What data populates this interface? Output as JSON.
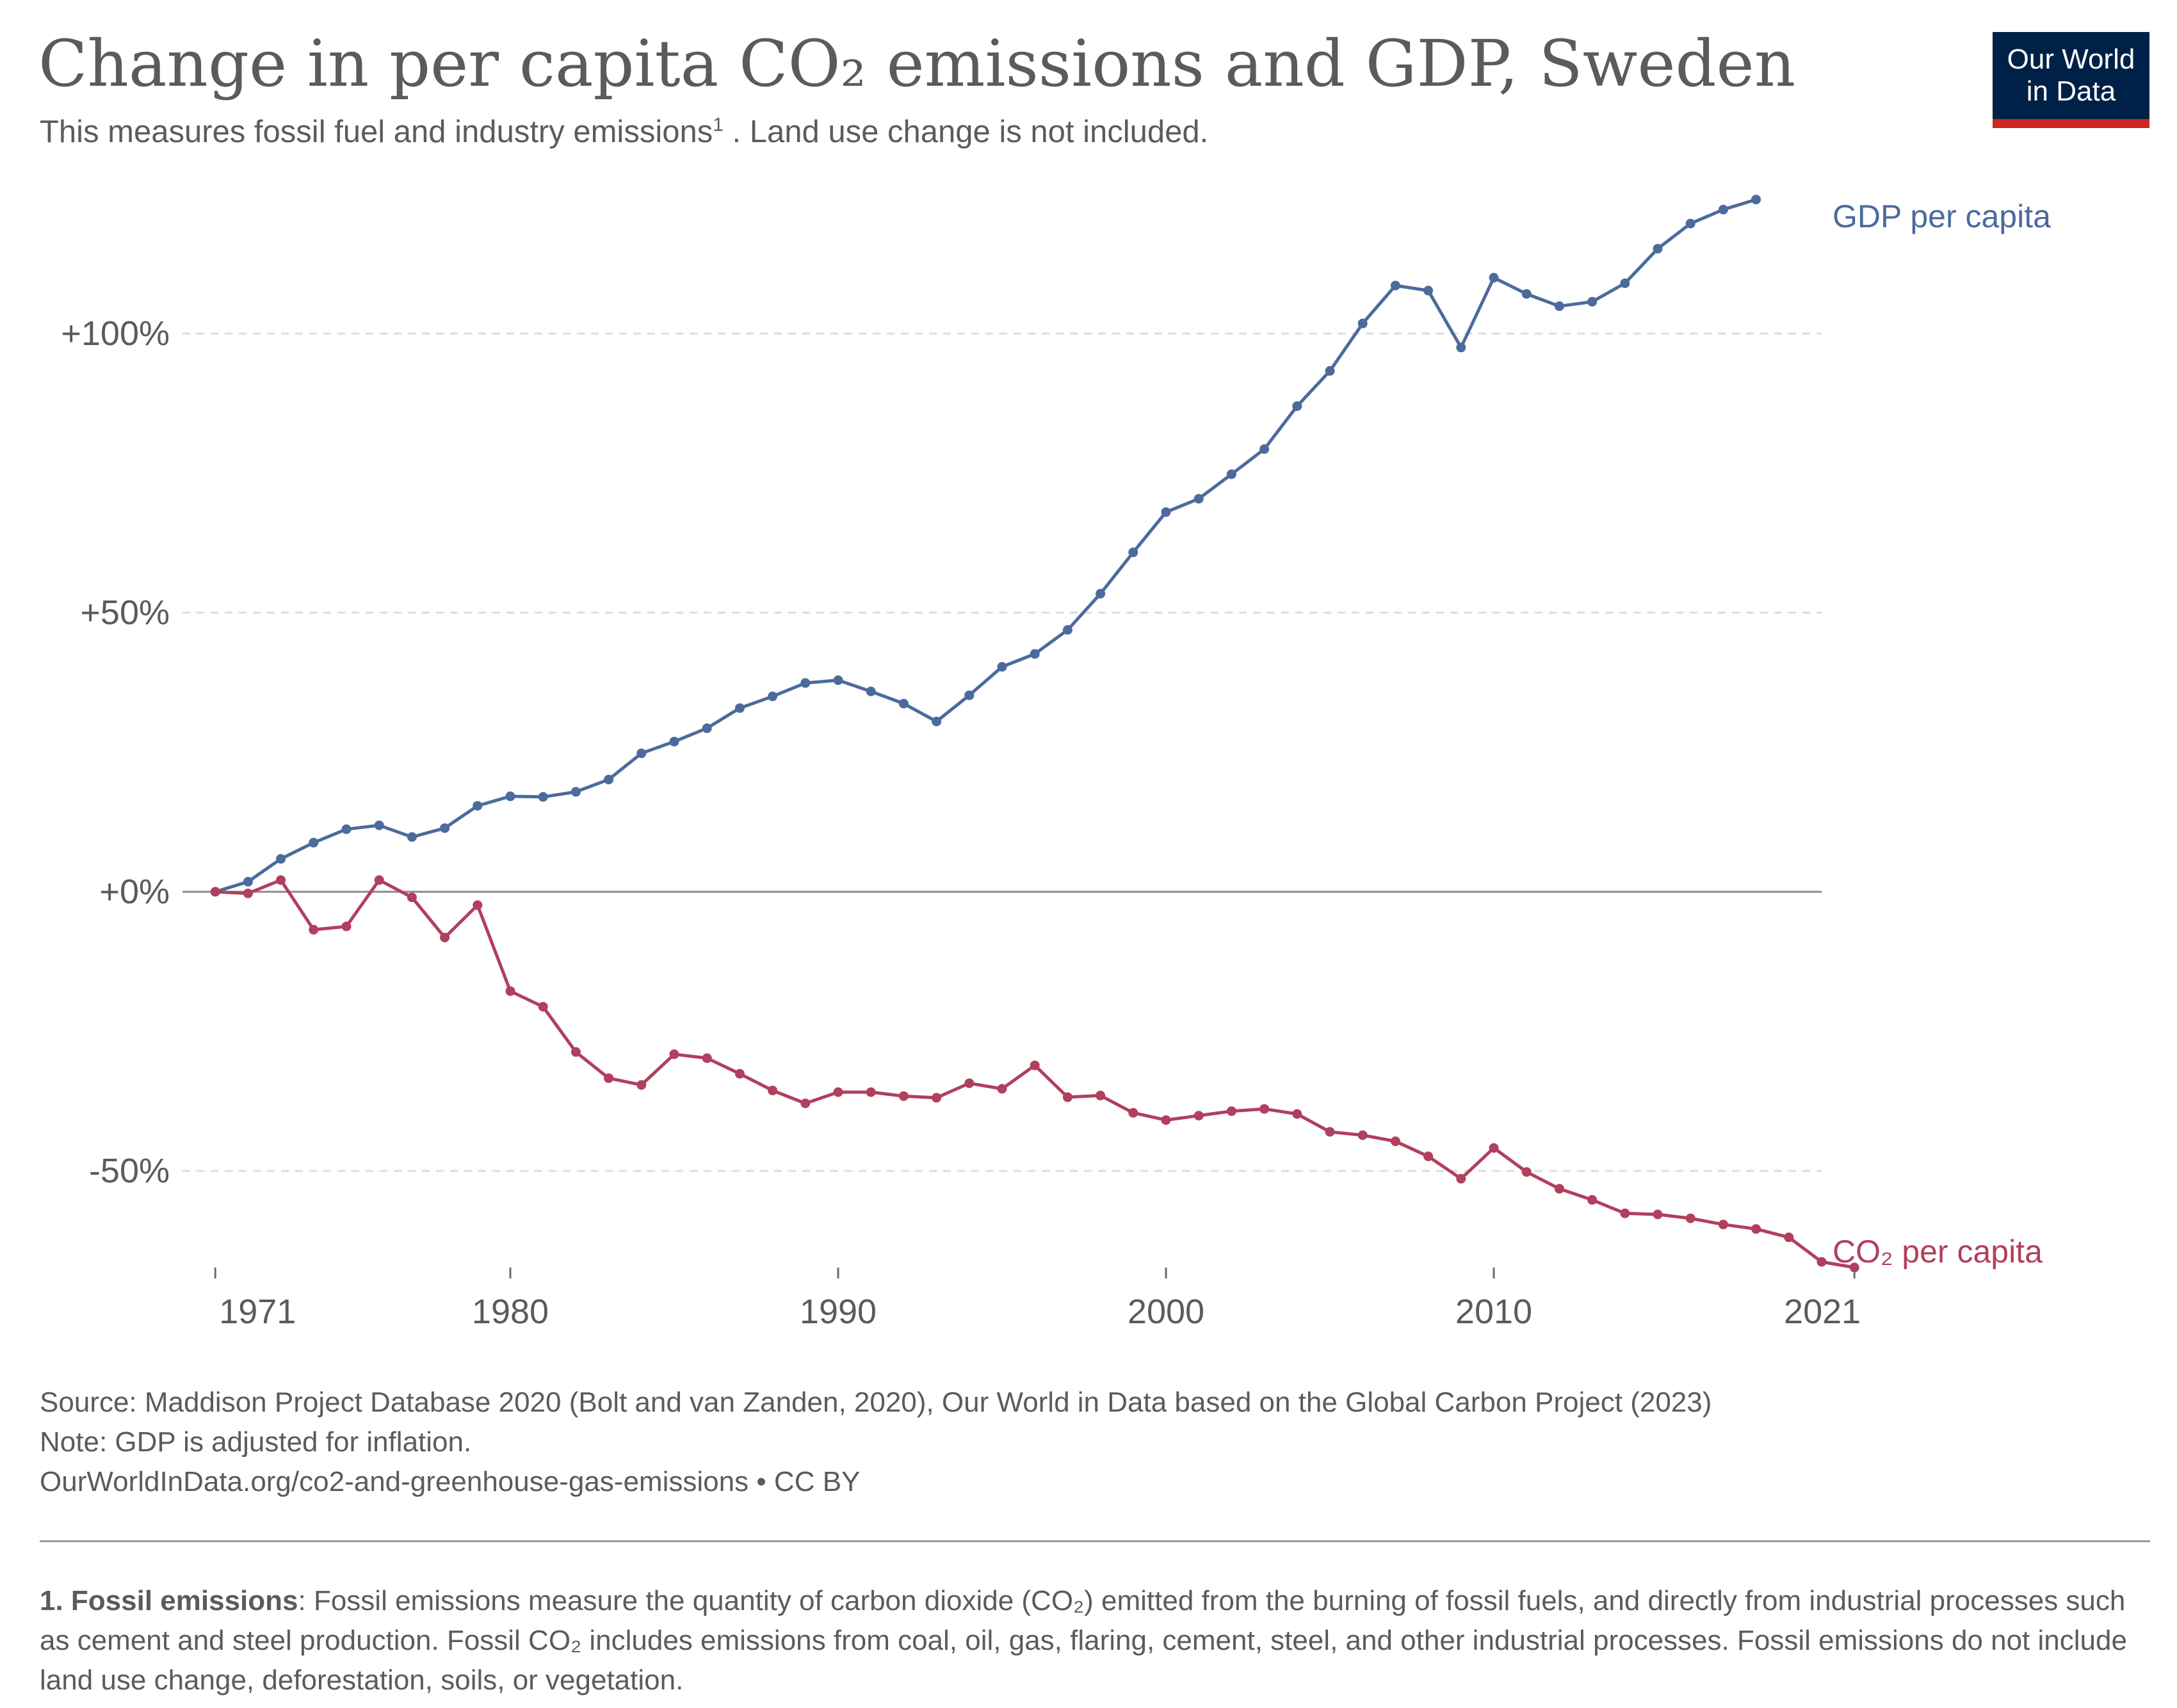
{
  "header": {
    "title": "Change in per capita CO₂ emissions and GDP, Sweden",
    "subtitle_before": "This measures fossil fuel and industry emissions",
    "subtitle_sup": "1",
    "subtitle_after": " . Land use change is not included.",
    "logo_line1": "Our World",
    "logo_line2": "in Data"
  },
  "colors": {
    "gdp": "#4c6a9c",
    "co2": "#b13f5e",
    "grid": "#dcdcdc",
    "zero_line": "#8a8a8a",
    "logo_bg": "#002147",
    "logo_bar": "#ce261e"
  },
  "chart_data": {
    "type": "line",
    "title": "Change in per capita CO₂ emissions and GDP, Sweden",
    "xlabel": "",
    "ylabel": "",
    "xlim": [
      1970,
      2020
    ],
    "ylim": [
      -67,
      125
    ],
    "y_ticks": [
      100,
      50,
      0,
      -50
    ],
    "y_tick_labels": [
      "+100%",
      "+50%",
      "+0%",
      "-50%"
    ],
    "x_ticks": [
      1971,
      1980,
      1990,
      2000,
      2010,
      2021
    ],
    "x_tick_labels": [
      "1971",
      "1980",
      "1990",
      "2000",
      "2010",
      "2021"
    ],
    "x": [
      1971,
      1972,
      1973,
      1974,
      1975,
      1976,
      1977,
      1978,
      1979,
      1980,
      1981,
      1982,
      1983,
      1984,
      1985,
      1986,
      1987,
      1988,
      1989,
      1990,
      1991,
      1992,
      1993,
      1994,
      1995,
      1996,
      1997,
      1998,
      1999,
      2000,
      2001,
      2002,
      2003,
      2004,
      2005,
      2006,
      2007,
      2008,
      2009,
      2010,
      2011,
      2012,
      2013,
      2014,
      2015,
      2016,
      2017,
      2018,
      2019,
      2020,
      2021
    ],
    "series": [
      {
        "name": "GDP per capita",
        "values": [
          0,
          1.8,
          5.9,
          8.8,
          11.2,
          11.9,
          9.8,
          11.4,
          15.4,
          17.1,
          17.0,
          17.9,
          20.1,
          24.8,
          26.9,
          29.3,
          32.9,
          35.0,
          37.4,
          37.9,
          35.9,
          33.7,
          30.5,
          35.2,
          40.3,
          42.6,
          46.9,
          53.4,
          60.8,
          68.0,
          70.4,
          74.8,
          79.3,
          87.0,
          93.3,
          101.8,
          108.6,
          107.7,
          97.5,
          110.0,
          107.1,
          104.9,
          105.7,
          109.0,
          115.2,
          119.7,
          122.2,
          124.0,
          null,
          null,
          null
        ]
      },
      {
        "name": "CO₂ per capita",
        "values": [
          0,
          -0.3,
          2.1,
          -6.8,
          -6.2,
          2.1,
          -1.0,
          -8.2,
          -2.4,
          -17.8,
          -20.6,
          -28.7,
          -33.4,
          -34.6,
          -29.1,
          -29.8,
          -32.6,
          -35.6,
          -37.9,
          -35.9,
          -35.9,
          -36.6,
          -36.9,
          -34.3,
          -35.3,
          -31.1,
          -36.8,
          -36.5,
          -39.6,
          -40.9,
          -40.1,
          -39.3,
          -38.9,
          -39.8,
          -43.0,
          -43.6,
          -44.7,
          -47.4,
          -51.4,
          -45.9,
          -50.2,
          -53.2,
          -55.2,
          -57.6,
          -57.8,
          -58.5,
          -59.6,
          -60.4,
          -61.9,
          -66.3,
          -67.3
        ]
      }
    ],
    "legend": "right, end of lines"
  },
  "footer": {
    "source": "Source: Maddison Project Database 2020 (Bolt and van Zanden, 2020), Our World in Data based on the Global Carbon Project (2023)",
    "note": "Note: GDP is adjusted for inflation.",
    "url_line": "OurWorldInData.org/co2-and-greenhouse-gas-emissions • CC BY",
    "footnote_label": "1. Fossil emissions",
    "footnote_text": ": Fossil emissions measure the quantity of carbon dioxide (CO₂) emitted from the burning of fossil fuels, and directly from industrial processes such as cement and steel production. Fossil CO₂ includes emissions from coal, oil, gas, flaring, cement, steel, and other industrial processes. Fossil emissions do not include land use change, deforestation, soils, or vegetation."
  }
}
